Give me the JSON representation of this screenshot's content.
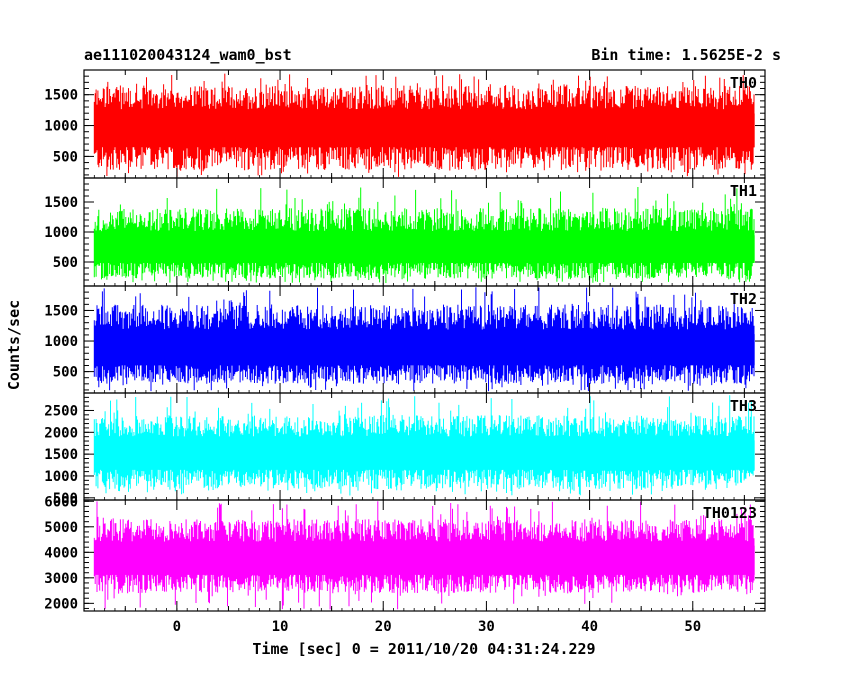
{
  "header": {
    "left_title": "ae111020043124_wam0_bst",
    "right_title": "Bin time: 1.5625E-2 s"
  },
  "chart_data": {
    "type": "line",
    "title": "ae111020043124_wam0_bst",
    "subtitle": "Bin time: 1.5625E-2 s",
    "xlabel": "Time [sec] 0 = 2011/10/20 04:31:24.229",
    "ylabel": "Counts/sec",
    "xlim": [
      -9,
      57
    ],
    "x_ticks": [
      0,
      10,
      20,
      30,
      40,
      50
    ],
    "x_tick_labels": [
      "0",
      "10",
      "20",
      "30",
      "40",
      "50"
    ],
    "data_x_range": [
      -8,
      56
    ],
    "grid": false,
    "series": [
      {
        "name": "TH0",
        "color": "#ff0000",
        "ylim": [
          150,
          1900
        ],
        "y_ticks": [
          500,
          1000,
          1500
        ],
        "mean": 950,
        "typical_min": 280,
        "typical_max": 1650,
        "extreme_min": 150,
        "extreme_max": 1850
      },
      {
        "name": "TH1",
        "color": "#00ff00",
        "ylim": [
          100,
          1900
        ],
        "y_ticks": [
          500,
          1000,
          1500
        ],
        "mean": 700,
        "typical_min": 220,
        "typical_max": 1400,
        "extreme_min": 150,
        "extreme_max": 1750
      },
      {
        "name": "TH2",
        "color": "#0000ff",
        "ylim": [
          150,
          1900
        ],
        "y_ticks": [
          500,
          1000,
          1500
        ],
        "mean": 850,
        "typical_min": 300,
        "typical_max": 1600,
        "extreme_min": 180,
        "extreme_max": 1880
      },
      {
        "name": "TH3",
        "color": "#00ffff",
        "ylim": [
          450,
          2900
        ],
        "y_ticks": [
          500,
          1000,
          1500,
          2000,
          2500
        ],
        "mean": 1500,
        "typical_min": 700,
        "typical_max": 2400,
        "extreme_min": 550,
        "extreme_max": 2850
      },
      {
        "name": "TH0123",
        "color": "#ff00ff",
        "ylim": [
          1700,
          6050
        ],
        "y_ticks": [
          2000,
          3000,
          4000,
          5000,
          6000
        ],
        "mean": 3700,
        "typical_min": 2400,
        "typical_max": 5300,
        "extreme_min": 1750,
        "extreme_max": 6000
      }
    ]
  }
}
